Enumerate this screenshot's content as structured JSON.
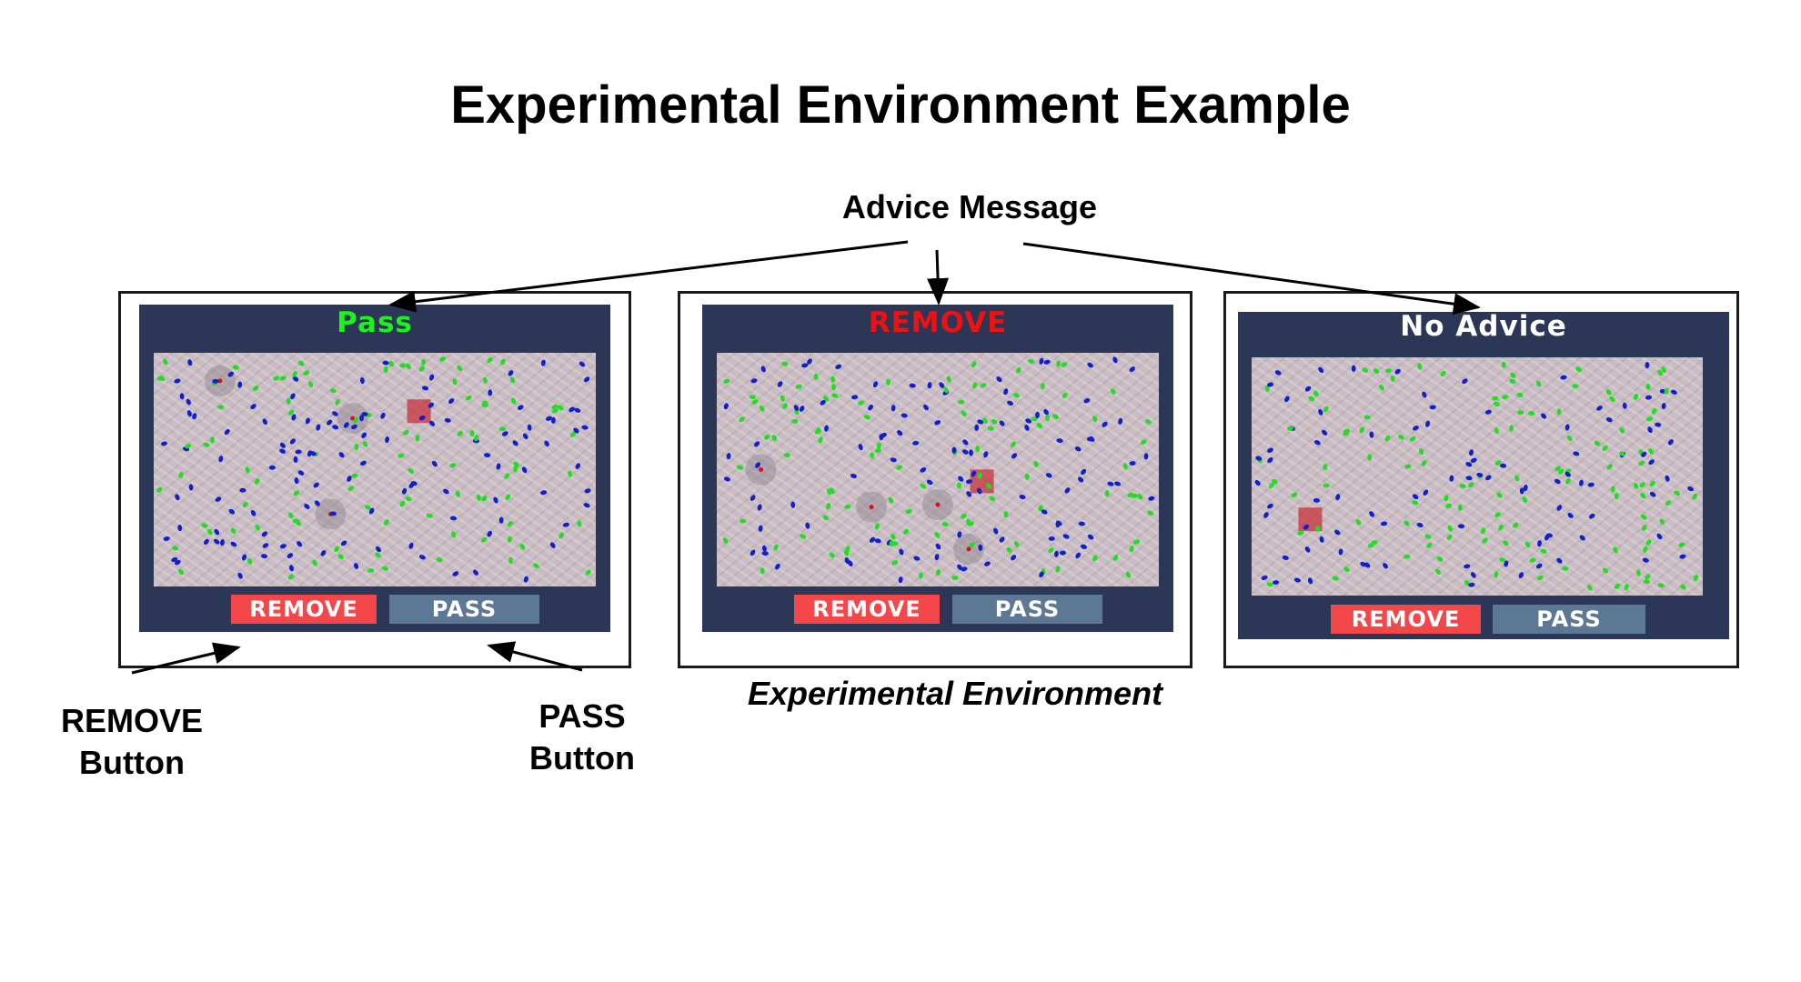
{
  "title": "Experimental Environment Example",
  "advice_caption": "Advice Message",
  "environment_caption": "Experimental Environment",
  "callouts": {
    "remove_button": [
      "REMOVE",
      "Button"
    ],
    "pass_button": [
      "PASS",
      "Button"
    ]
  },
  "colors": {
    "pass_advice": "#20f020",
    "remove_advice": "#ee1111",
    "no_advice": "#ffffff",
    "screen_bg": "#2c3656",
    "remove_button": "#f4474a",
    "pass_button": "#5d7895",
    "agent_green": "#22dd22",
    "agent_blue": "#1020cc"
  },
  "panels": [
    {
      "advice": "Pass",
      "advice_color": "#20f020",
      "remove_label": "REMOVE",
      "pass_label": "PASS"
    },
    {
      "advice": "REMOVE",
      "advice_color": "#ee1111",
      "remove_label": "REMOVE",
      "pass_label": "PASS"
    },
    {
      "advice": "No Advice",
      "advice_color": "#ffffff",
      "remove_label": "REMOVE",
      "pass_label": "PASS"
    }
  ]
}
